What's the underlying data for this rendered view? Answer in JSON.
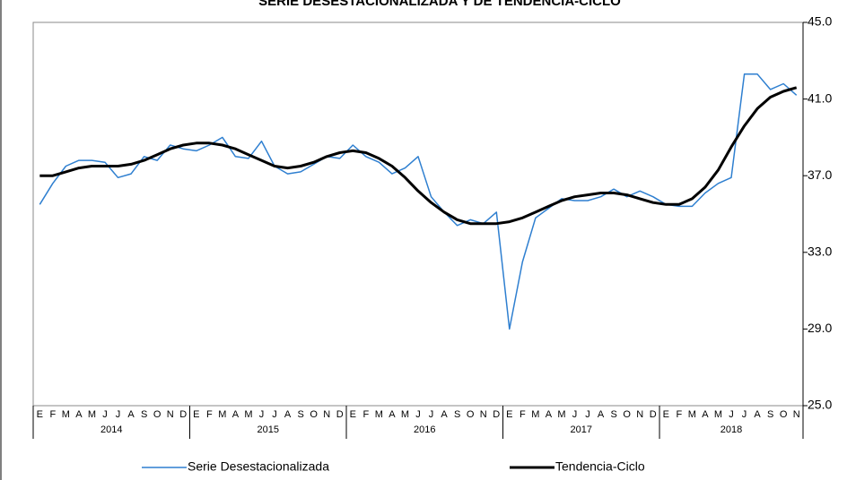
{
  "chart_data": {
    "type": "line",
    "title": "SERIE DESESTACIONALIZADA Y DE TENDENCIA-CICLO",
    "groups": [
      {
        "name": "2014",
        "categories": [
          "E",
          "F",
          "M",
          "A",
          "M",
          "J",
          "J",
          "A",
          "S",
          "O",
          "N",
          "D"
        ]
      },
      {
        "name": "2015",
        "categories": [
          "E",
          "F",
          "M",
          "A",
          "M",
          "J",
          "J",
          "A",
          "S",
          "O",
          "N",
          "D"
        ]
      },
      {
        "name": "2016",
        "categories": [
          "E",
          "F",
          "M",
          "A",
          "M",
          "J",
          "J",
          "A",
          "S",
          "O",
          "N",
          "D"
        ]
      },
      {
        "name": "2017",
        "categories": [
          "E",
          "F",
          "M",
          "A",
          "M",
          "J",
          "J",
          "A",
          "S",
          "O",
          "N",
          "D"
        ]
      },
      {
        "name": "2018",
        "categories": [
          "E",
          "F",
          "M",
          "A",
          "M",
          "J",
          "J",
          "A",
          "S",
          "O",
          "N"
        ]
      }
    ],
    "series": [
      {
        "name": "Serie Desestacionalizada",
        "color": "#2e7fd0",
        "width": 1.5,
        "values": [
          35.5,
          36.6,
          37.5,
          37.8,
          37.8,
          37.7,
          36.9,
          37.1,
          38.0,
          37.8,
          38.6,
          38.4,
          38.3,
          38.6,
          39.0,
          38.0,
          37.9,
          38.8,
          37.5,
          37.1,
          37.2,
          37.6,
          38.0,
          37.9,
          38.6,
          38.0,
          37.7,
          37.1,
          37.4,
          38.0,
          35.9,
          35.1,
          34.4,
          34.7,
          34.5,
          35.1,
          29.0,
          32.5,
          34.8,
          35.3,
          35.8,
          35.7,
          35.7,
          35.9,
          36.3,
          35.9,
          36.2,
          35.9,
          35.5,
          35.4,
          35.4,
          36.1,
          36.6,
          36.9,
          42.3,
          42.3,
          41.5,
          41.8,
          41.2
        ]
      },
      {
        "name": "Tendencia-Ciclo",
        "color": "#000000",
        "width": 3,
        "values": [
          37.0,
          37.0,
          37.2,
          37.4,
          37.5,
          37.5,
          37.5,
          37.6,
          37.8,
          38.1,
          38.4,
          38.6,
          38.7,
          38.7,
          38.6,
          38.4,
          38.1,
          37.8,
          37.5,
          37.4,
          37.5,
          37.7,
          38.0,
          38.2,
          38.3,
          38.2,
          37.9,
          37.5,
          36.9,
          36.2,
          35.6,
          35.1,
          34.7,
          34.5,
          34.5,
          34.5,
          34.6,
          34.8,
          35.1,
          35.4,
          35.7,
          35.9,
          36.0,
          36.1,
          36.1,
          36.0,
          35.8,
          35.6,
          35.5,
          35.5,
          35.8,
          36.4,
          37.3,
          38.5,
          39.6,
          40.5,
          41.1,
          41.4,
          41.6
        ]
      }
    ],
    "ylim": [
      25,
      45
    ],
    "yticks": [
      {
        "value": 25,
        "label": "25.0"
      },
      {
        "value": 29,
        "label": "29.0"
      },
      {
        "value": 33,
        "label": "33.0"
      },
      {
        "value": 37,
        "label": "37.0"
      },
      {
        "value": 41,
        "label": "41.0"
      },
      {
        "value": 45,
        "label": "45.0"
      }
    ],
    "y_axis_side": "right",
    "grid": false,
    "legend": "bottom"
  }
}
